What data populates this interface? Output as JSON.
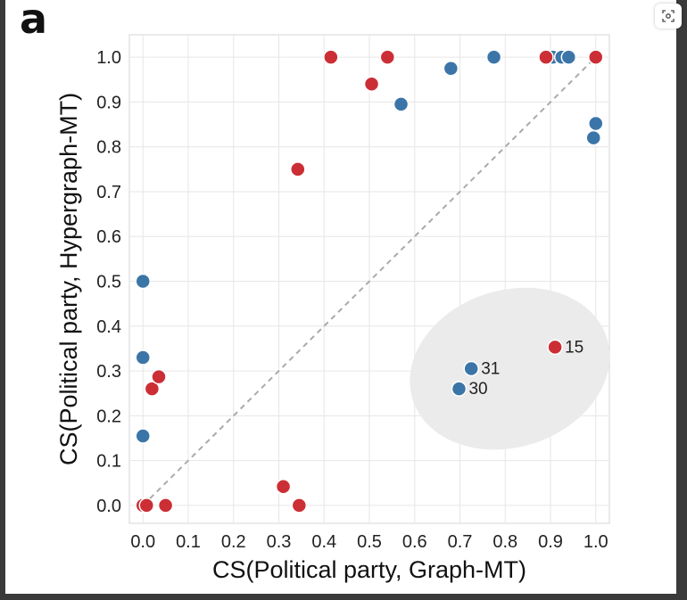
{
  "panel_label": "a",
  "chart_data": {
    "type": "scatter",
    "title": "",
    "xlabel": "CS(Political party, Graph-MT)",
    "ylabel": "CS(Political party, Hypergraph-MT)",
    "xlim": [
      -0.03,
      1.03
    ],
    "ylim": [
      -0.04,
      1.05
    ],
    "xticks": [
      "0.0",
      "0.1",
      "0.2",
      "0.3",
      "0.4",
      "0.5",
      "0.6",
      "0.7",
      "0.8",
      "0.9",
      "1.0"
    ],
    "yticks": [
      "0.0",
      "0.1",
      "0.2",
      "0.3",
      "0.4",
      "0.5",
      "0.6",
      "0.7",
      "0.8",
      "0.9",
      "1.0"
    ],
    "grid": true,
    "diagonal_reference": true,
    "colors": {
      "blue": "#3b75a8",
      "red": "#cc2e35",
      "ellipse": "#ebebeb",
      "diagonal": "#aaaaaa"
    },
    "series": [
      {
        "color": "blue",
        "points": [
          {
            "x": 0.0,
            "y": 0.5
          },
          {
            "x": 0.0,
            "y": 0.33
          },
          {
            "x": 0.0,
            "y": 0.155
          },
          {
            "x": 0.57,
            "y": 0.895
          },
          {
            "x": 0.68,
            "y": 0.975
          },
          {
            "x": 0.775,
            "y": 1.0
          },
          {
            "x": 0.905,
            "y": 1.0
          },
          {
            "x": 0.925,
            "y": 1.0
          },
          {
            "x": 0.94,
            "y": 1.0
          },
          {
            "x": 0.995,
            "y": 0.82
          },
          {
            "x": 1.0,
            "y": 0.852
          },
          {
            "x": 0.725,
            "y": 0.305,
            "label": "31"
          },
          {
            "x": 0.698,
            "y": 0.26,
            "label": "30"
          }
        ]
      },
      {
        "color": "red",
        "points": [
          {
            "x": 0.0,
            "y": 0.0
          },
          {
            "x": 0.008,
            "y": 0.0
          },
          {
            "x": 0.05,
            "y": 0.0
          },
          {
            "x": 0.02,
            "y": 0.26
          },
          {
            "x": 0.035,
            "y": 0.287
          },
          {
            "x": 0.31,
            "y": 0.042
          },
          {
            "x": 0.345,
            "y": 0.0
          },
          {
            "x": 0.342,
            "y": 0.75
          },
          {
            "x": 0.415,
            "y": 1.0
          },
          {
            "x": 0.505,
            "y": 0.94
          },
          {
            "x": 0.54,
            "y": 1.0
          },
          {
            "x": 0.89,
            "y": 1.0
          },
          {
            "x": 1.0,
            "y": 1.0
          },
          {
            "x": 0.91,
            "y": 0.353,
            "label": "15"
          }
        ]
      }
    ],
    "highlight_region": {
      "cx": 0.81,
      "cy": 0.305,
      "rx": 0.225,
      "ry": 0.175
    }
  }
}
